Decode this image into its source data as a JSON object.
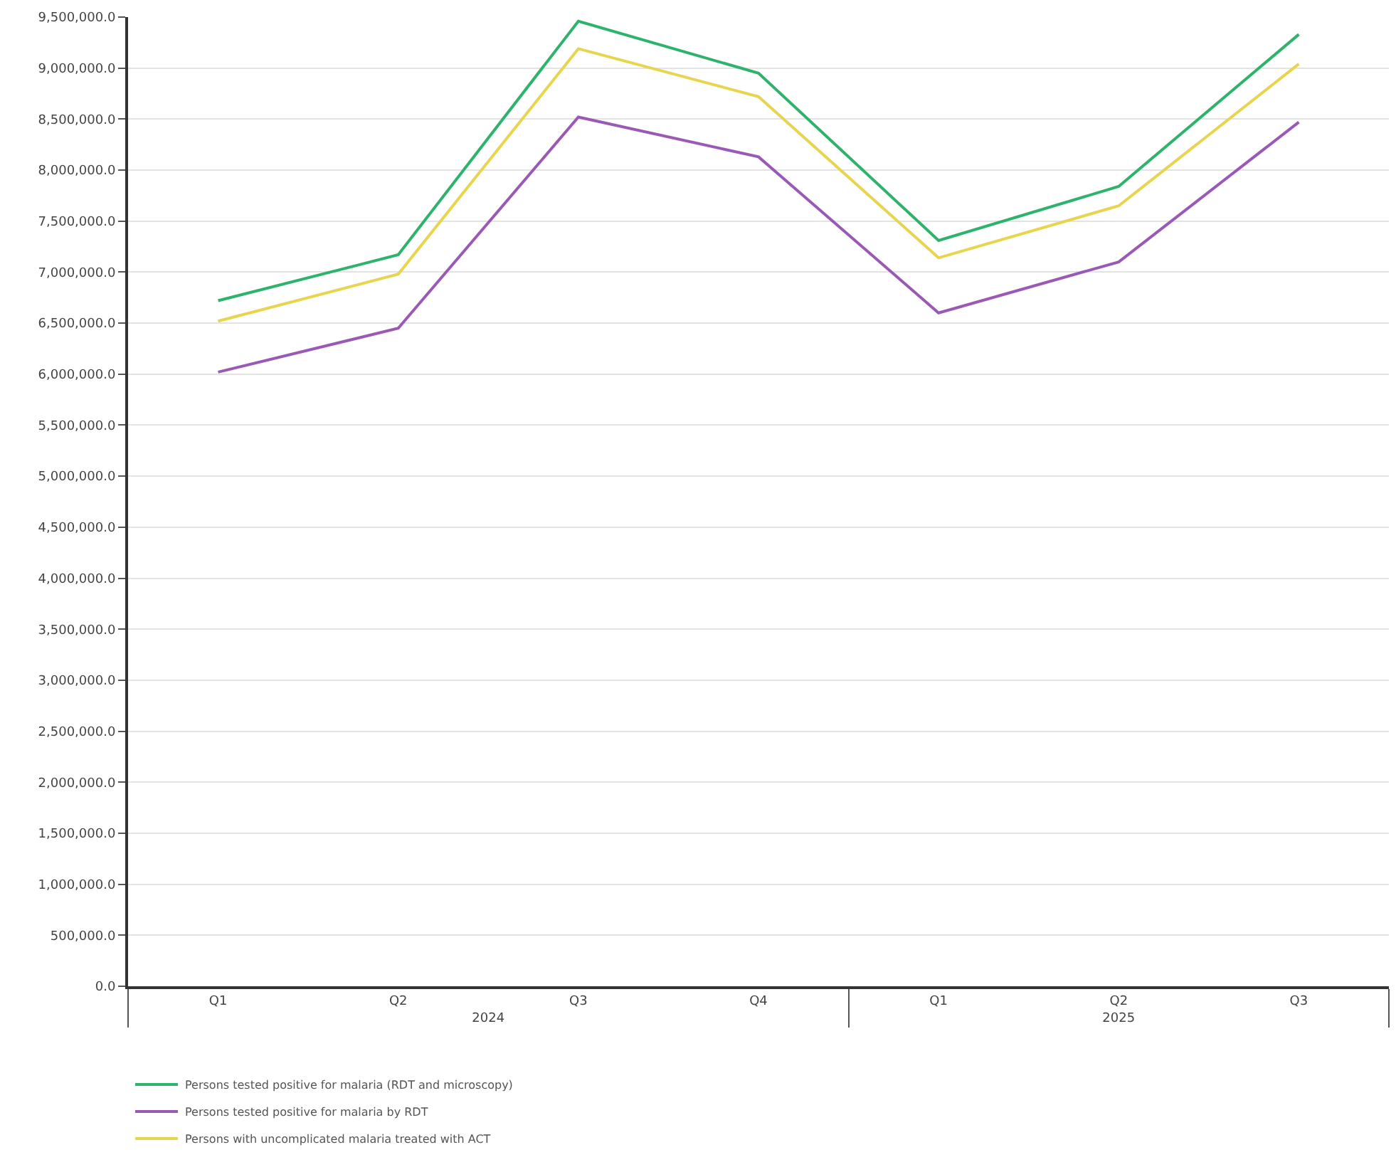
{
  "chart_data": {
    "type": "line",
    "categories": [
      "Q1",
      "Q2",
      "Q3",
      "Q4",
      "Q1",
      "Q2",
      "Q3"
    ],
    "annotations": [
      "2024",
      "2025"
    ],
    "series": [
      {
        "name": "Persons tested positive for malaria (RDT and microscopy)",
        "color": "#2db36b",
        "values": [
          6720000,
          7170000,
          9460000,
          8950000,
          7310000,
          7840000,
          9330000
        ]
      },
      {
        "name": "Persons tested positive for malaria by RDT",
        "color": "#9b59b6",
        "values": [
          6020000,
          6450000,
          8520000,
          8130000,
          6600000,
          7100000,
          8470000
        ]
      },
      {
        "name": "Persons with uncomplicated malaria treated with ACT",
        "color": "#e8d44d",
        "values": [
          6520000,
          6980000,
          9190000,
          8720000,
          7140000,
          7650000,
          9040000
        ]
      }
    ],
    "ylim": [
      0,
      9500000
    ],
    "yticks": [
      {
        "value": 0,
        "label": "0.0"
      },
      {
        "value": 500000,
        "label": "500,000.0"
      },
      {
        "value": 1000000,
        "label": "1,000,000.0"
      },
      {
        "value": 1500000,
        "label": "1,500,000.0"
      },
      {
        "value": 2000000,
        "label": "2,000,000.0"
      },
      {
        "value": 2500000,
        "label": "2,500,000.0"
      },
      {
        "value": 3000000,
        "label": "3,000,000.0"
      },
      {
        "value": 3500000,
        "label": "3,500,000.0"
      },
      {
        "value": 4000000,
        "label": "4,000,000.0"
      },
      {
        "value": 4500000,
        "label": "4,500,000.0"
      },
      {
        "value": 5000000,
        "label": "5,000,000.0"
      },
      {
        "value": 5500000,
        "label": "5,500,000.0"
      },
      {
        "value": 6000000,
        "label": "6,000,000.0"
      },
      {
        "value": 6500000,
        "label": "6,500,000.0"
      },
      {
        "value": 7000000,
        "label": "7,000,000.0"
      },
      {
        "value": 7500000,
        "label": "7,500,000.0"
      },
      {
        "value": 8000000,
        "label": "8,000,000.0"
      },
      {
        "value": 8500000,
        "label": "8,500,000.0"
      },
      {
        "value": 9000000,
        "label": "9,000,000.0"
      },
      {
        "value": 9500000,
        "label": "9,500,000.0"
      }
    ],
    "grid": "y",
    "legend": "bottom left",
    "marker": "none",
    "line_style": "solid"
  }
}
